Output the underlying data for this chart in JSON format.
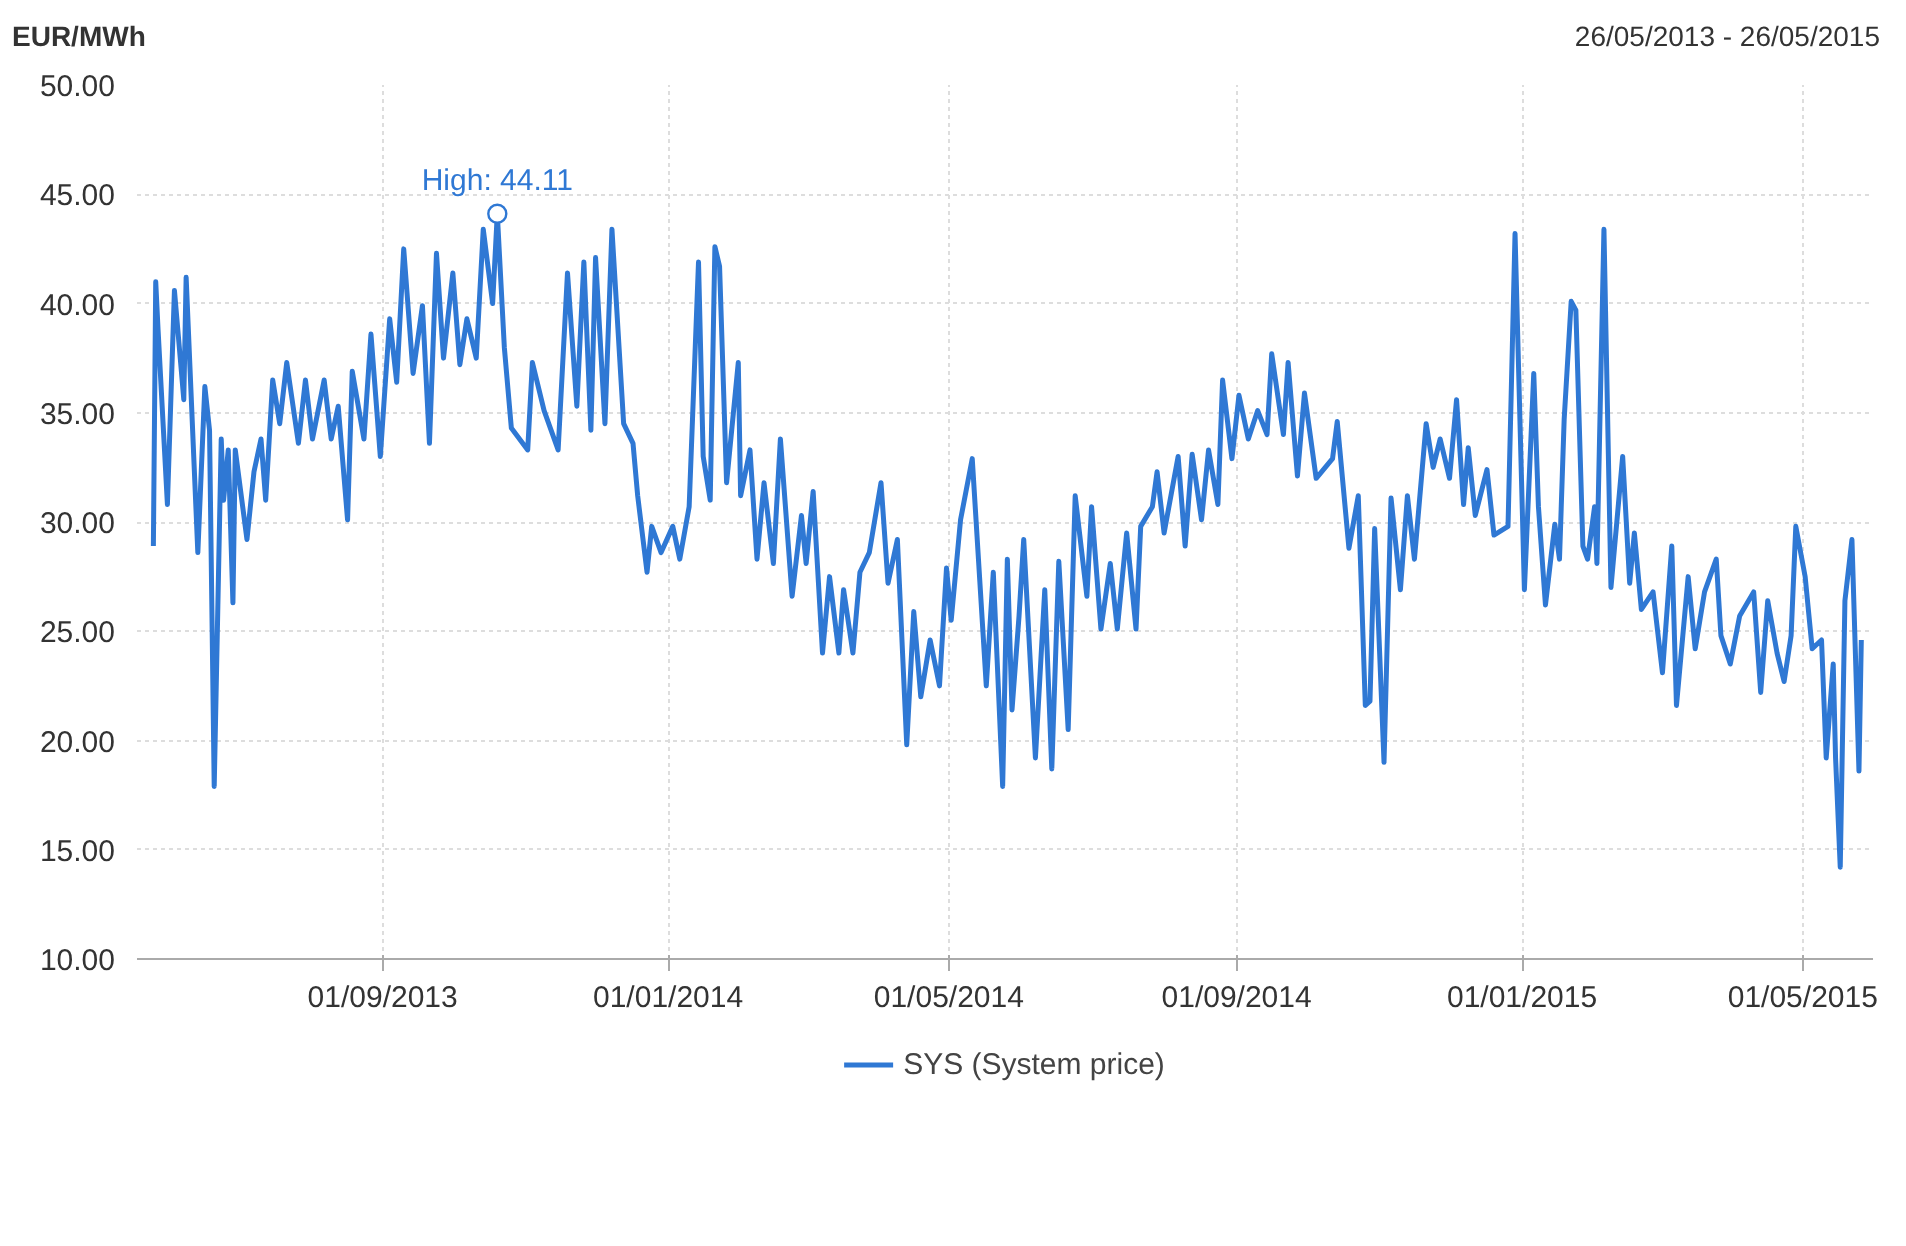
{
  "chart_data": {
    "type": "line",
    "ylabel": "EUR/MWh",
    "subtitle": "26/05/2013 - 26/05/2015",
    "x": [
      "2013-05-26",
      "2013-05-27",
      "2013-05-28",
      "2013-06-01",
      "2013-06-04",
      "2013-06-08",
      "2013-06-09",
      "2013-06-14",
      "2013-06-17",
      "2013-06-19",
      "2013-06-21",
      "2013-06-24",
      "2013-06-25",
      "2013-06-27",
      "2013-06-29",
      "2013-06-30",
      "2013-07-05",
      "2013-07-08",
      "2013-07-11",
      "2013-07-13",
      "2013-07-16",
      "2013-07-19",
      "2013-07-22",
      "2013-07-27",
      "2013-07-30",
      "2013-08-02",
      "2013-08-07",
      "2013-08-10",
      "2013-08-13",
      "2013-08-17",
      "2013-08-19",
      "2013-08-24",
      "2013-08-27",
      "2013-08-31",
      "2013-09-04",
      "2013-09-07",
      "2013-09-10",
      "2013-09-14",
      "2013-09-18",
      "2013-09-21",
      "2013-09-24",
      "2013-09-27",
      "2013-10-01",
      "2013-10-04",
      "2013-10-07",
      "2013-10-11",
      "2013-10-14",
      "2013-10-18",
      "2013-10-20",
      "2013-10-23",
      "2013-10-26",
      "2013-11-02",
      "2013-11-04",
      "2013-11-09",
      "2013-11-15",
      "2013-11-19",
      "2013-11-23",
      "2013-11-26",
      "2013-11-29",
      "2013-12-01",
      "2013-12-05",
      "2013-12-08",
      "2013-12-13",
      "2013-12-17",
      "2013-12-19",
      "2013-12-23",
      "2013-12-25",
      "2013-12-29",
      "2014-01-03",
      "2014-01-06",
      "2014-01-10",
      "2014-01-14",
      "2014-01-16",
      "2014-01-19",
      "2014-01-21",
      "2014-01-23",
      "2014-01-26",
      "2014-01-31",
      "2014-02-01",
      "2014-02-05",
      "2014-02-08",
      "2014-02-11",
      "2014-02-15",
      "2014-02-18",
      "2014-02-23",
      "2014-02-27",
      "2014-03-01",
      "2014-03-04",
      "2014-03-08",
      "2014-03-11",
      "2014-03-15",
      "2014-03-17",
      "2014-03-21",
      "2014-03-24",
      "2014-03-28",
      "2014-04-02",
      "2014-04-05",
      "2014-04-09",
      "2014-04-13",
      "2014-04-16",
      "2014-04-19",
      "2014-04-23",
      "2014-04-27",
      "2014-04-30",
      "2014-05-02",
      "2014-05-06",
      "2014-05-11",
      "2014-05-17",
      "2014-05-20",
      "2014-05-24",
      "2014-05-26",
      "2014-05-28",
      "2014-05-31",
      "2014-06-02",
      "2014-06-07",
      "2014-06-11",
      "2014-06-14",
      "2014-06-17",
      "2014-06-21",
      "2014-06-24",
      "2014-06-29",
      "2014-07-01",
      "2014-07-05",
      "2014-07-09",
      "2014-07-12",
      "2014-07-16",
      "2014-07-20",
      "2014-07-22",
      "2014-07-27",
      "2014-07-29",
      "2014-08-01",
      "2014-08-07",
      "2014-08-10",
      "2014-08-13",
      "2014-08-17",
      "2014-08-20",
      "2014-08-24",
      "2014-08-26",
      "2014-08-30",
      "2014-09-02",
      "2014-09-06",
      "2014-09-10",
      "2014-09-14",
      "2014-09-16",
      "2014-09-21",
      "2014-09-23",
      "2014-09-27",
      "2014-09-30",
      "2014-10-05",
      "2014-10-12",
      "2014-10-14",
      "2014-10-19",
      "2014-10-23",
      "2014-10-26",
      "2014-10-28",
      "2014-10-30",
      "2014-11-03",
      "2014-11-06",
      "2014-11-10",
      "2014-11-13",
      "2014-11-16",
      "2014-11-21",
      "2014-11-24",
      "2014-11-27",
      "2014-12-01",
      "2014-12-04",
      "2014-12-07",
      "2014-12-09",
      "2014-12-12",
      "2014-12-17",
      "2014-12-20",
      "2014-12-26",
      "2014-12-29",
      "2015-01-02",
      "2015-01-06",
      "2015-01-08",
      "2015-01-11",
      "2015-01-15",
      "2015-01-17",
      "2015-01-19",
      "2015-01-22",
      "2015-01-24",
      "2015-01-27",
      "2015-01-29",
      "2015-02-01",
      "2015-02-02",
      "2015-02-05",
      "2015-02-08",
      "2015-02-13",
      "2015-02-16",
      "2015-02-18",
      "2015-02-21",
      "2015-02-26",
      "2015-03-02",
      "2015-03-06",
      "2015-03-08",
      "2015-03-13",
      "2015-03-16",
      "2015-03-20",
      "2015-03-25",
      "2015-03-27",
      "2015-03-31",
      "2015-04-04",
      "2015-04-10",
      "2015-04-13",
      "2015-04-16",
      "2015-04-20",
      "2015-04-23",
      "2015-04-26",
      "2015-04-28",
      "2015-05-02",
      "2015-05-05",
      "2015-05-09",
      "2015-05-11",
      "2015-05-14",
      "2015-05-15",
      "2015-05-17",
      "2015-05-19",
      "2015-05-22",
      "2015-05-25",
      "2015-05-26"
    ],
    "series": [
      {
        "name": "SYS (System price)",
        "color": "#2f78d4",
        "values": [
          28.9,
          41.0,
          38.8,
          30.8,
          40.6,
          35.6,
          41.2,
          28.6,
          36.2,
          34.2,
          17.9,
          33.8,
          31.0,
          33.3,
          26.3,
          33.3,
          29.2,
          32.3,
          33.8,
          31.0,
          36.5,
          34.5,
          37.3,
          33.6,
          36.5,
          33.8,
          36.5,
          33.8,
          35.3,
          30.1,
          36.9,
          33.8,
          38.6,
          33.0,
          39.3,
          36.4,
          42.5,
          36.8,
          39.9,
          33.6,
          42.3,
          37.5,
          41.4,
          37.2,
          39.3,
          37.5,
          43.4,
          40.0,
          44.11,
          38.0,
          34.3,
          33.3,
          37.3,
          35.1,
          33.3,
          41.4,
          35.3,
          41.9,
          34.2,
          42.1,
          34.5,
          43.4,
          34.5,
          33.6,
          31.2,
          27.7,
          29.8,
          28.6,
          29.8,
          28.3,
          30.7,
          41.9,
          33.0,
          31.0,
          42.6,
          41.7,
          31.8,
          37.3,
          31.2,
          33.3,
          28.3,
          31.8,
          28.1,
          33.8,
          26.6,
          30.3,
          28.1,
          31.4,
          24.0,
          27.5,
          24.0,
          26.9,
          24.0,
          27.7,
          28.6,
          31.8,
          27.2,
          29.2,
          19.8,
          25.9,
          22.0,
          24.6,
          22.5,
          27.9,
          25.5,
          30.1,
          32.9,
          22.5,
          27.7,
          17.9,
          28.3,
          21.4,
          25.7,
          29.2,
          19.2,
          26.9,
          18.7,
          28.2,
          20.5,
          31.2,
          26.6,
          30.7,
          25.1,
          28.1,
          25.1,
          29.5,
          25.1,
          29.8,
          30.7,
          32.3,
          29.5,
          33.0,
          28.9,
          33.1,
          30.1,
          33.3,
          30.8,
          36.5,
          32.9,
          35.8,
          33.8,
          35.1,
          34.0,
          37.7,
          34.0,
          37.3,
          32.1,
          35.9,
          32.0,
          32.9,
          34.6,
          28.8,
          31.2,
          21.6,
          21.8,
          29.7,
          19.0,
          31.1,
          26.9,
          31.2,
          28.3,
          34.5,
          32.5,
          33.8,
          32.0,
          35.6,
          30.8,
          33.4,
          30.3,
          32.4,
          29.4,
          29.8,
          43.2,
          26.9,
          36.8,
          30.7,
          26.2,
          29.9,
          28.3,
          34.7,
          40.1,
          39.7,
          28.9,
          28.3,
          30.7,
          28.1,
          43.4,
          27.0,
          33.0,
          27.2,
          29.5,
          26.0,
          26.8,
          23.1,
          28.9,
          21.6,
          27.5,
          24.2,
          26.8,
          28.3,
          24.8,
          23.5,
          25.7,
          26.8,
          22.2,
          26.4,
          24.0,
          22.7,
          24.8,
          29.8,
          27.5,
          24.2,
          24.6,
          19.2,
          23.5,
          19.2,
          14.2,
          26.4,
          29.2,
          18.6,
          24.6
        ]
      }
    ],
    "xlim": [
      "2013-05-19",
      "2015-05-31"
    ],
    "xticks": [
      {
        "value": "2013-09-01",
        "label": "01/09/2013"
      },
      {
        "value": "2014-01-01",
        "label": "01/01/2014"
      },
      {
        "value": "2014-05-01",
        "label": "01/05/2014"
      },
      {
        "value": "2014-09-01",
        "label": "01/09/2014"
      },
      {
        "value": "2015-01-01",
        "label": "01/01/2015"
      },
      {
        "value": "2015-05-01",
        "label": "01/05/2015"
      }
    ],
    "ylim": [
      10,
      50
    ],
    "yticks": [
      {
        "value": 10,
        "label": "10.00"
      },
      {
        "value": 15,
        "label": "15.00"
      },
      {
        "value": 20,
        "label": "20.00"
      },
      {
        "value": 25,
        "label": "25.00"
      },
      {
        "value": 30,
        "label": "30.00"
      },
      {
        "value": 35,
        "label": "35.00"
      },
      {
        "value": 40,
        "label": "40.00"
      },
      {
        "value": 45,
        "label": "45.00"
      },
      {
        "value": 50,
        "label": "50.00"
      }
    ],
    "annotations": [
      {
        "text": "High: 44.11",
        "x": "2013-10-20",
        "y": 44.11
      }
    ],
    "grid": true,
    "legend": "bottom",
    "line_style": "solid"
  }
}
